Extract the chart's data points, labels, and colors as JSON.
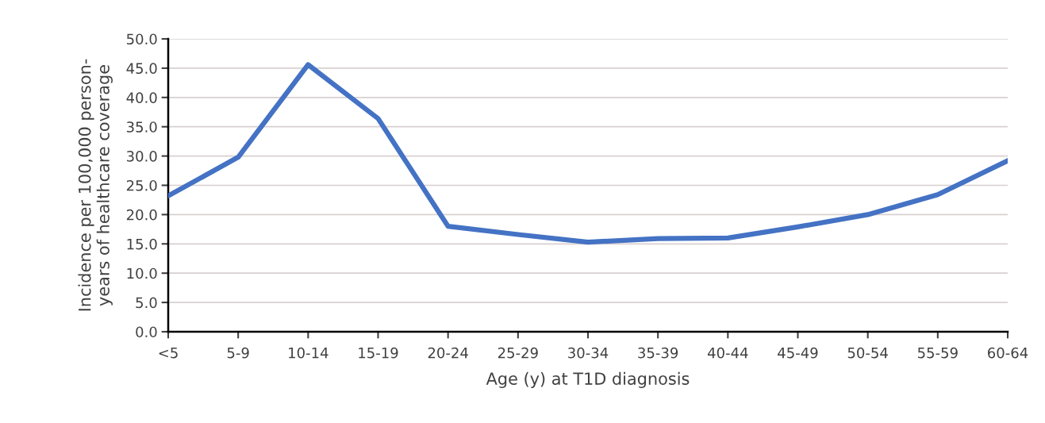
{
  "chart_data": {
    "type": "line",
    "xlabel": "Age (y) at T1D diagnosis",
    "ylabel": "Incidence per 100,000 person-\nyears of healthcare coverage",
    "categories": [
      "<5",
      "5-9",
      "10-14",
      "15-19",
      "20-24",
      "25-29",
      "30-34",
      "35-39",
      "40-44",
      "45-49",
      "50-54",
      "55-59",
      "60-64"
    ],
    "series": [
      {
        "color": "#4472c4",
        "values": [
          23.2,
          29.8,
          45.6,
          36.4,
          18.0,
          16.6,
          15.3,
          15.9,
          16.0,
          17.9,
          20.0,
          23.4,
          29.2
        ]
      }
    ],
    "ylim": [
      0,
      50
    ],
    "yticks": [
      {
        "value": 0,
        "label": "0.0"
      },
      {
        "value": 5,
        "label": "5.0"
      },
      {
        "value": 10,
        "label": "10.0"
      },
      {
        "value": 15,
        "label": "15.0"
      },
      {
        "value": 20,
        "label": "20.0"
      },
      {
        "value": 25,
        "label": "25.0"
      },
      {
        "value": 30,
        "label": "30.0"
      },
      {
        "value": 35,
        "label": "35.0"
      },
      {
        "value": 40,
        "label": "40.0"
      },
      {
        "value": 45,
        "label": "45.0"
      },
      {
        "value": 50,
        "label": "50.0"
      }
    ],
    "grid": "y",
    "marker": "none",
    "line_style": "solid"
  }
}
